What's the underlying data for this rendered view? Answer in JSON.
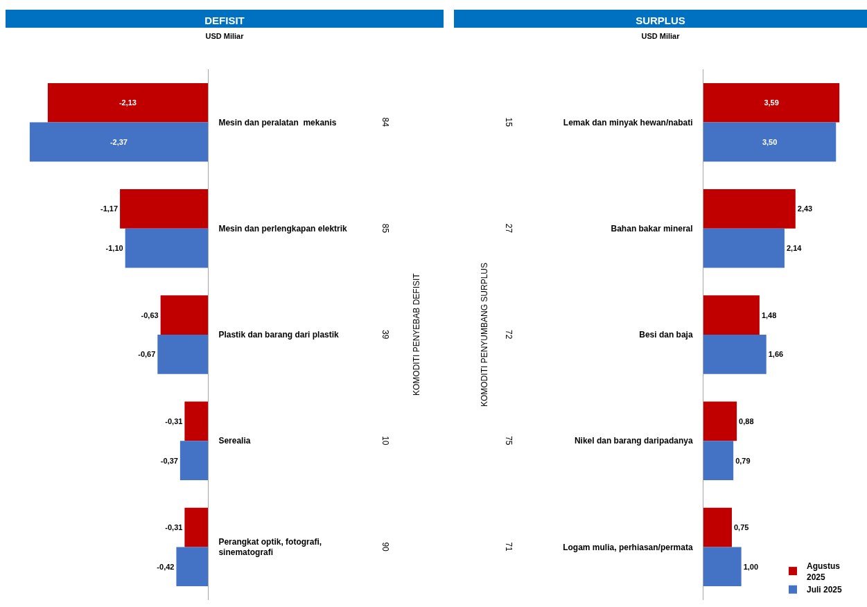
{
  "chart_data": [
    {
      "type": "bar",
      "orientation": "horizontal",
      "title": "DEFISIT",
      "subtitle": "USD Miliar",
      "ylabel": "KOMODITI PENYEBAB DEFISIT",
      "categories": [
        "Mesin dan peralatan  mekanis",
        "Mesin dan perlengkapan elektrik",
        "Plastik dan barang dari plastik",
        "Serealia",
        "Perangkat optik, fotografi,\nsinematografi"
      ],
      "annotations": [
        "84",
        "85",
        "39",
        "10",
        "90"
      ],
      "series": [
        {
          "color": "#c00000",
          "values": [
            -2.13,
            -1.17,
            -0.63,
            -0.31,
            -0.31
          ],
          "value_labels": [
            "-2,13",
            "-1,17",
            "-0,63",
            "-0,31",
            "-0,31"
          ]
        },
        {
          "color": "#4472c4",
          "values": [
            -2.37,
            -1.1,
            -0.67,
            -0.37,
            -0.42
          ],
          "value_labels": [
            "-2,37",
            "-1,10",
            "-0,67",
            "-0,37",
            "-0,42"
          ]
        }
      ],
      "tick_labels": "y",
      "legend": false
    },
    {
      "type": "bar",
      "orientation": "horizontal",
      "title": "SURPLUS",
      "subtitle": "USD  Miliar",
      "ylabel": "KOMODITI PENYUMBANG SURPLUS",
      "categories": [
        "Lemak dan minyak hewan/nabati",
        "Bahan bakar mineral",
        "Besi dan baja",
        "Nikel dan barang daripadanya",
        "Logam mulia, perhiasan/permata"
      ],
      "annotations": [
        "15",
        "27",
        "72",
        "75",
        "71"
      ],
      "series": [
        {
          "name": "Agustus\n2025",
          "color": "#c00000",
          "values": [
            3.59,
            2.43,
            1.48,
            0.88,
            0.75
          ],
          "value_labels": [
            "3,59",
            "2,43",
            "1,48",
            "0,88",
            "0,75"
          ]
        },
        {
          "name": "Juli 2025",
          "color": "#4472c4",
          "values": [
            3.5,
            2.14,
            1.66,
            0.79,
            1.0
          ],
          "value_labels": [
            "3,50",
            "2,14",
            "1,66",
            "0,79",
            "1,00"
          ]
        }
      ],
      "tick_labels": "y",
      "legend": "bottom right"
    }
  ]
}
